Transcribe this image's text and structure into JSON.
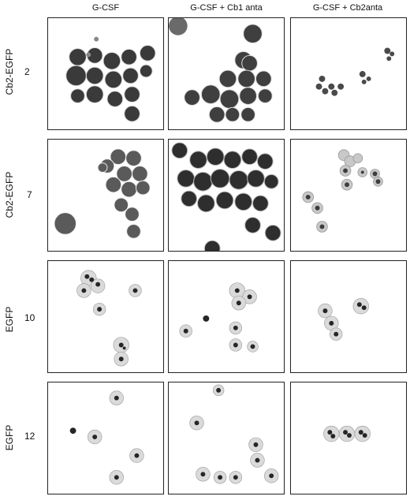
{
  "columns": [
    "G-CSF",
    "G-CSF + Cb1 anta",
    "G-CSF + Cb2anta"
  ],
  "rows": [
    {
      "construct": "Cb2-EGFP",
      "day": "2"
    },
    {
      "construct": "Cb2-EGFP",
      "day": "7"
    },
    {
      "construct": "EGFP",
      "day": "10"
    },
    {
      "construct": "EGFP",
      "day": "12"
    }
  ]
}
